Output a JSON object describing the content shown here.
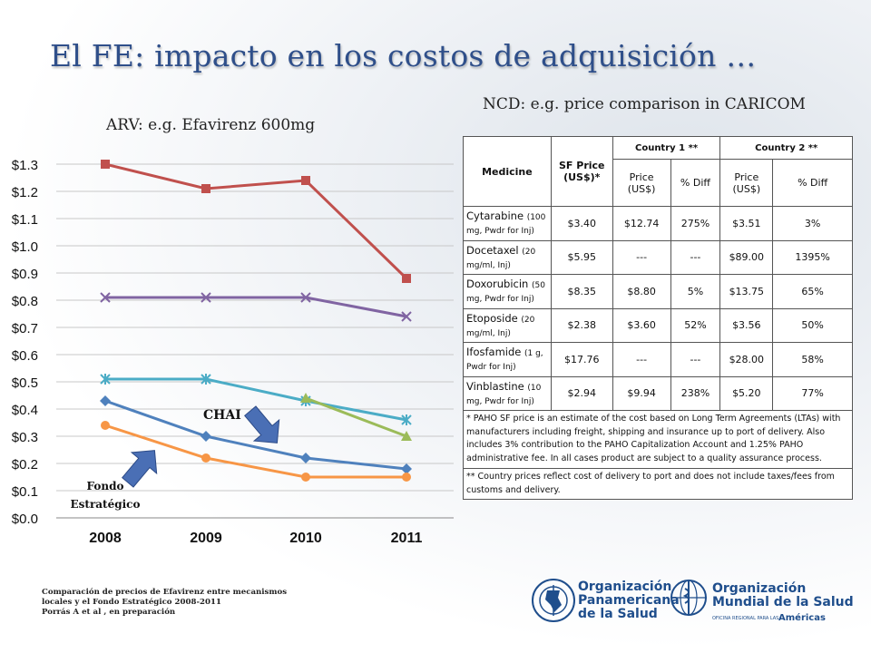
{
  "slide": {
    "title": "El FE: impacto en los costos de adquisición …",
    "arv_subtitle": "ARV: e.g. Efavirenz 600mg",
    "ncd_subtitle": "NCD: e.g. price comparison in CARICOM",
    "citation": [
      "Comparación de precios de Efavirenz entre mecanismos",
      "locales y el Fondo Estratégico 2008-2011",
      "Porrás A et al , en preparación"
    ]
  },
  "chart_data": {
    "type": "line",
    "categories": [
      "2008",
      "2009",
      "2010",
      "2011"
    ],
    "y_tick_labels": [
      "$0.0",
      "$0.1",
      "$0.2",
      "$0.3",
      "$0.4",
      "$0.5",
      "$0.6",
      "$0.7",
      "$0.8",
      "$0.9",
      "$1.0",
      "$1.1",
      "$1.2",
      "$1.3"
    ],
    "ylim": [
      0,
      1.3
    ],
    "grid": true,
    "series": [
      {
        "color": "#c0504d",
        "marker": "square",
        "values": [
          1.3,
          1.21,
          1.24,
          0.88
        ]
      },
      {
        "color": "#8064a2",
        "marker": "x",
        "values": [
          0.81,
          0.81,
          0.81,
          0.74
        ]
      },
      {
        "color": "#4bacc6",
        "marker": "asterisk",
        "values": [
          0.51,
          0.51,
          0.43,
          0.36
        ]
      },
      {
        "color": "#4f81bd",
        "marker": "diamond",
        "values": [
          0.43,
          0.3,
          0.22,
          0.18
        ]
      },
      {
        "color": "#f79646",
        "marker": "circle",
        "values": [
          0.34,
          0.22,
          0.15,
          0.15
        ]
      },
      {
        "color": "#9bbb59",
        "marker": "triangle",
        "values": [
          null,
          null,
          0.44,
          0.3
        ]
      }
    ],
    "annotations": {
      "chai": "CHAI",
      "fondo": [
        "Fondo",
        "Estratégico"
      ]
    },
    "arrow_color": "#4a6fb5"
  },
  "table": {
    "headers": {
      "medicine": "Medicine",
      "sf_price": "SF Price (US$)*",
      "country1": "Country 1 **",
      "country2": "Country 2 **",
      "price": "Price (US$)",
      "diff": "% Diff"
    },
    "rows": [
      {
        "name": "Cytarabine",
        "detail": "(100 mg, Pwdr for Inj)",
        "sf": "$3.40",
        "c1_price": "$12.74",
        "c1_diff": "275%",
        "c2_price": "$3.51",
        "c2_diff": "3%"
      },
      {
        "name": "Docetaxel",
        "detail": "(20 mg/ml, Inj)",
        "sf": "$5.95",
        "c1_price": "---",
        "c1_diff": "---",
        "c2_price": "$89.00",
        "c2_diff": "1395%"
      },
      {
        "name": "Doxorubicin",
        "detail": "(50 mg, Pwdr for Inj)",
        "sf": "$8.35",
        "c1_price": "$8.80",
        "c1_diff": "5%",
        "c2_price": "$13.75",
        "c2_diff": "65%"
      },
      {
        "name": "Etoposide",
        "detail": "(20 mg/ml, Inj)",
        "sf": "$2.38",
        "c1_price": "$3.60",
        "c1_diff": "52%",
        "c2_price": "$3.56",
        "c2_diff": "50%"
      },
      {
        "name": "Ifosfamide",
        "detail": "(1 g, Pwdr for Inj)",
        "sf": "$17.76",
        "c1_price": "---",
        "c1_diff": "---",
        "c2_price": "$28.00",
        "c2_diff": "58%"
      },
      {
        "name": "Vinblastine",
        "detail": "(10 mg, Pwdr for Inj)",
        "sf": "$2.94",
        "c1_price": "$9.94",
        "c1_diff": "238%",
        "c2_price": "$5.20",
        "c2_diff": "77%"
      }
    ],
    "note1": "* PAHO SF price is an estimate of the cost based on Long Term Agreements (LTAs) with manufacturers including freight, shipping and insurance up to port of delivery. Also includes 3% contribution to the PAHO Capitalization Account and 1.25% PAHO administrative fee. In all cases product are subject to a quality assurance process.",
    "note2": "** Country prices reflect cost of delivery to port and does not include taxes/fees from customs and delivery."
  },
  "logos": {
    "ops_lines": [
      "Organización",
      "Panamericana",
      "de la Salud"
    ],
    "oms_lines": [
      "Organización",
      "Mundial de la Salud"
    ],
    "oms_sub": "OFICINA REGIONAL PARA LAS",
    "oms_region": "Américas"
  }
}
